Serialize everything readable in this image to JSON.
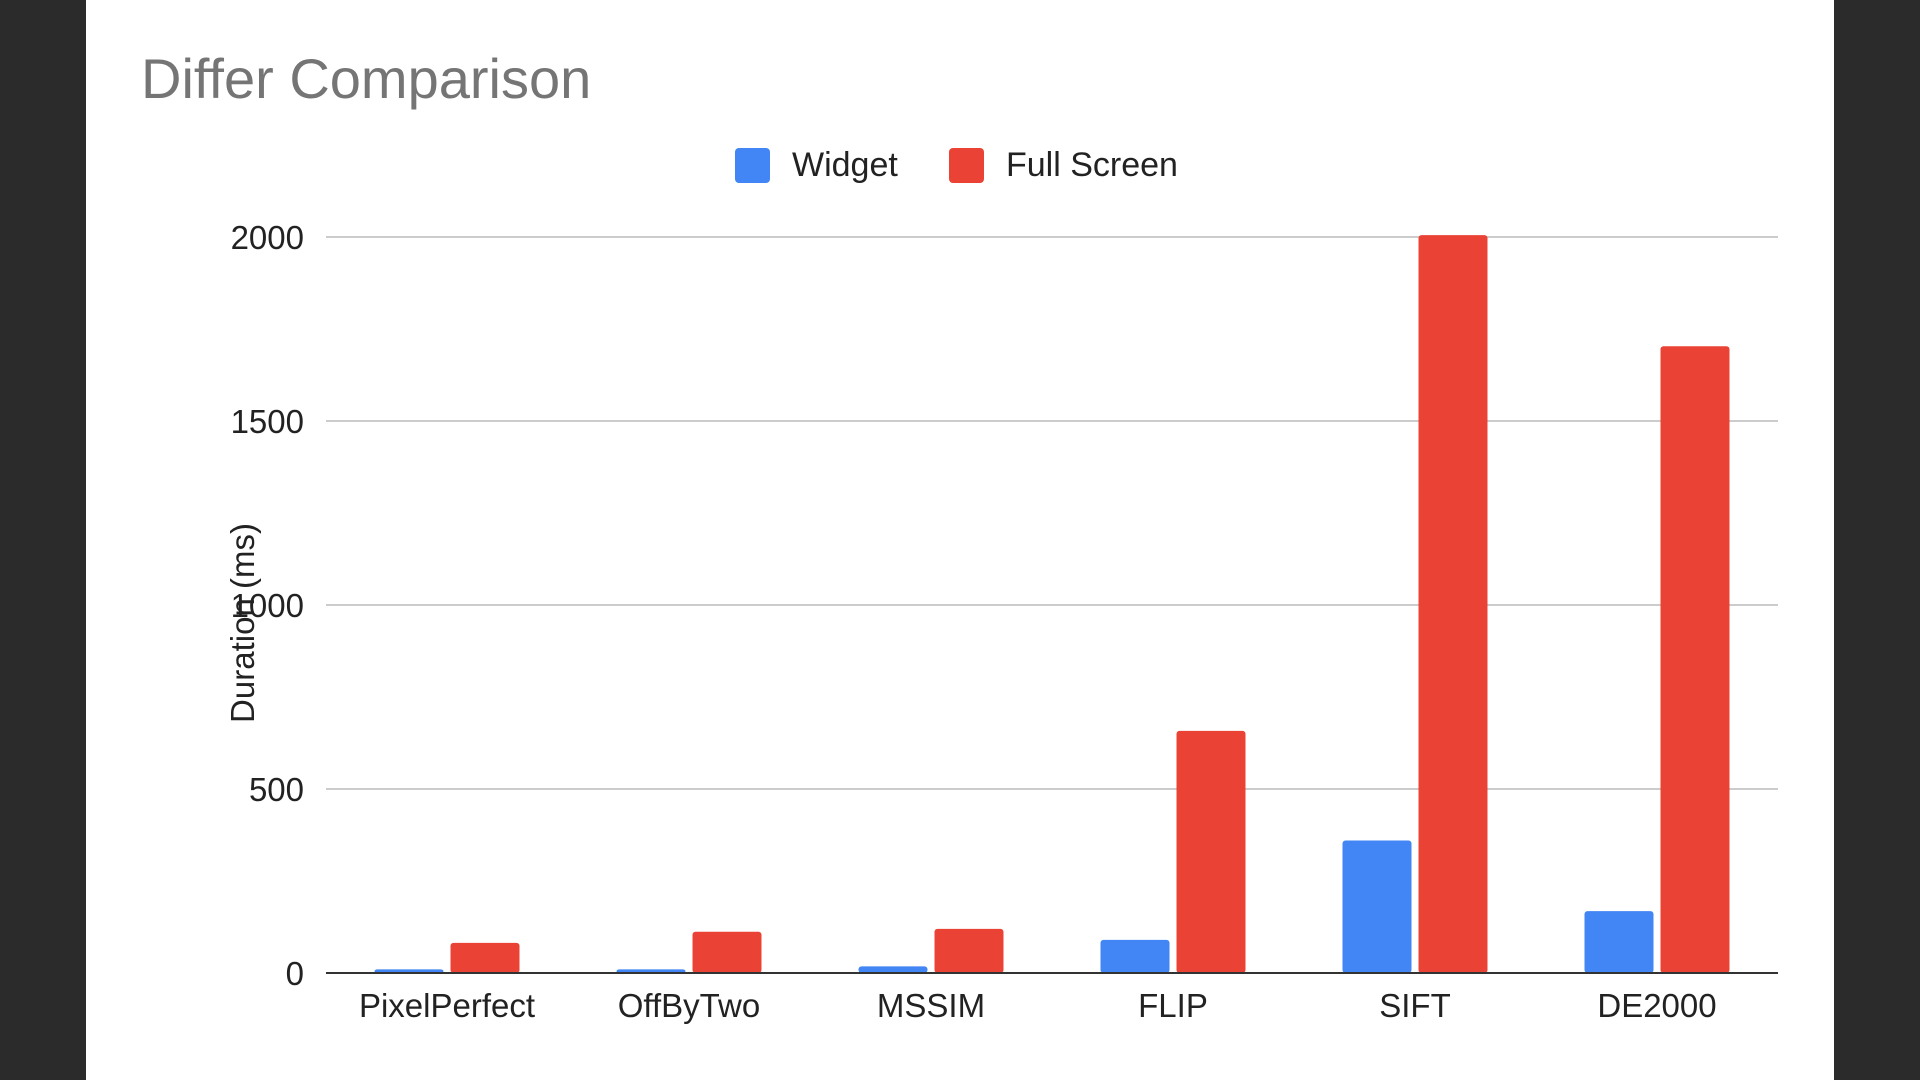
{
  "chart_data": {
    "type": "bar",
    "title": "Differ Comparison",
    "xlabel": "",
    "ylabel": "Duration (ms)",
    "categories": [
      "PixelPerfect",
      "OffByTwo",
      "MSSIM",
      "FLIP",
      "SIFT",
      "DE2000"
    ],
    "series": [
      {
        "name": "Widget",
        "color": "#4285f4",
        "values": [
          10,
          10,
          18,
          90,
          360,
          168
        ]
      },
      {
        "name": "Full Screen",
        "color": "#ea4335",
        "values": [
          82,
          112,
          120,
          658,
          2005,
          1703
        ]
      }
    ],
    "ylim": [
      0,
      2000
    ],
    "yticks": [
      "0",
      "500",
      "1000",
      "1500",
      "2000"
    ],
    "grid": true,
    "legend_position": "top-center"
  }
}
